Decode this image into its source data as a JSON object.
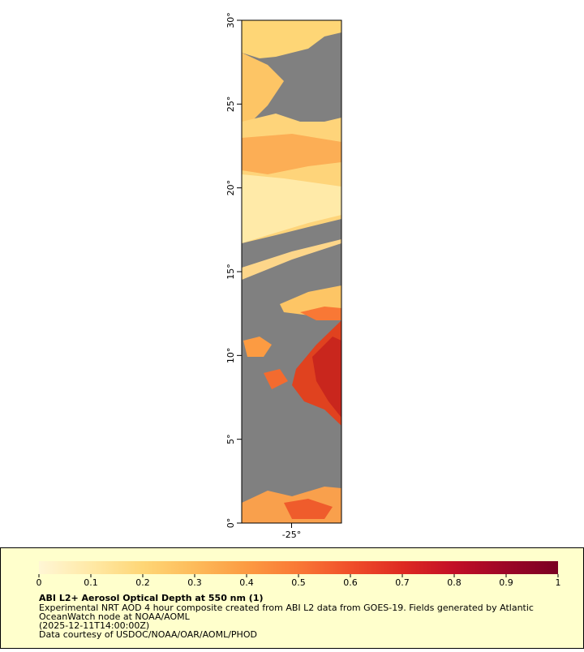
{
  "map": {
    "xlim": [
      -28,
      -22
    ],
    "ylim": [
      0,
      30
    ],
    "xticks": [
      {
        "value": -25,
        "label": "-25°"
      }
    ],
    "yticks": [
      {
        "value": 0,
        "label": "0°"
      },
      {
        "value": 5,
        "label": "5°"
      },
      {
        "value": 10,
        "label": "10°"
      },
      {
        "value": 15,
        "label": "15°"
      },
      {
        "value": 20,
        "label": "20°"
      },
      {
        "value": 25,
        "label": "25°"
      },
      {
        "value": 30,
        "label": "30°"
      }
    ]
  },
  "colorbar": {
    "range": [
      0,
      1
    ],
    "ticks": [
      0,
      0.1,
      0.2,
      0.3,
      0.4,
      0.5,
      0.6,
      0.7,
      0.8,
      0.9,
      1
    ],
    "colors": [
      "#fff6d5",
      "#ffe9a6",
      "#fed676",
      "#fdbb5a",
      "#fc9b42",
      "#f97835",
      "#f04f2a",
      "#de2a22",
      "#c20f26",
      "#9c0627",
      "#7a0022"
    ]
  },
  "legend": {
    "title": "ABI L2+ Aerosol Optical Depth at 550 nm (1)",
    "line1": "Experimental NRT AOD 4 hour composite created from ABI L2 data from GOES-19. Fields generated by Atlantic",
    "line2": "OceanWatch node at NOAA/AOML",
    "line3": "(2025-12-11T14:00:00Z)",
    "line4": "Data courtesy of USDOC/NOAA/OAR/AOML/PHOD"
  }
}
